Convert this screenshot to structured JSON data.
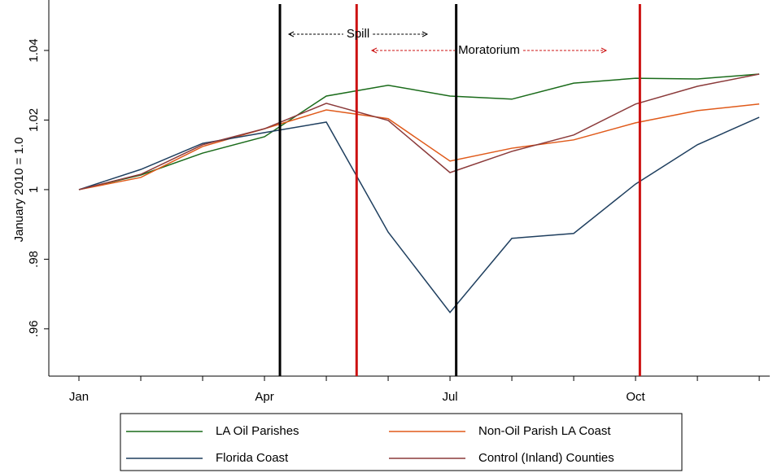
{
  "chart_data": {
    "type": "line",
    "ylabel": "January 2010 = 1.0",
    "x": [
      1,
      2,
      3,
      4,
      5,
      6,
      7,
      8,
      9,
      10,
      11,
      12
    ],
    "xlim": [
      0.513,
      12.17
    ],
    "ylim": [
      0.9464,
      1.0545
    ],
    "xticks": [
      {
        "value": 1,
        "label": "Jan"
      },
      {
        "value": 4,
        "label": "Apr"
      },
      {
        "value": 7,
        "label": "Jul"
      },
      {
        "value": 10,
        "label": "Oct"
      }
    ],
    "xminor": [
      2,
      3,
      5,
      6,
      8,
      9,
      11,
      12
    ],
    "yticks": [
      {
        "value": 0.96,
        "label": ".96"
      },
      {
        "value": 0.98,
        "label": ".98"
      },
      1,
      1.02,
      1.04
    ],
    "vlines": [
      {
        "x": 4.25,
        "color": "#000000"
      },
      {
        "x": 7.1,
        "color": "#000000"
      },
      {
        "x": 5.49,
        "color": "#cc1111"
      },
      {
        "x": 10.07,
        "color": "#cc1111"
      }
    ],
    "annotations": [
      {
        "text": "Spill",
        "color": "#000000"
      },
      {
        "text": "Moratorium",
        "color": "#cc1111"
      }
    ],
    "series": [
      {
        "name": "LA Oil Parishes",
        "color": "#1a6b1a",
        "values": [
          1.0,
          1.0042,
          1.0105,
          1.0152,
          1.0269,
          1.03,
          1.0269,
          1.026,
          1.0306,
          1.032,
          1.0318,
          1.0332
        ]
      },
      {
        "name": "Non-Oil Parish LA Coast",
        "color": "#e05a1a",
        "values": [
          1.0,
          1.0035,
          1.0124,
          1.0175,
          1.0229,
          1.0204,
          1.0082,
          1.0119,
          1.0143,
          1.0192,
          1.0227,
          1.0246
        ]
      },
      {
        "name": "Florida Coast",
        "color": "#1f3f5f",
        "values": [
          1.0,
          1.0058,
          1.0133,
          1.0164,
          1.0194,
          0.9878,
          0.9647,
          0.986,
          0.9874,
          1.0016,
          1.0129,
          1.0208
        ]
      },
      {
        "name": "Control (Inland) Counties",
        "color": "#8b3a3a",
        "values": [
          1.0,
          1.0044,
          1.0129,
          1.0175,
          1.0248,
          1.0199,
          1.0049,
          1.011,
          1.0157,
          1.0246,
          1.0297,
          1.0332
        ]
      }
    ]
  }
}
